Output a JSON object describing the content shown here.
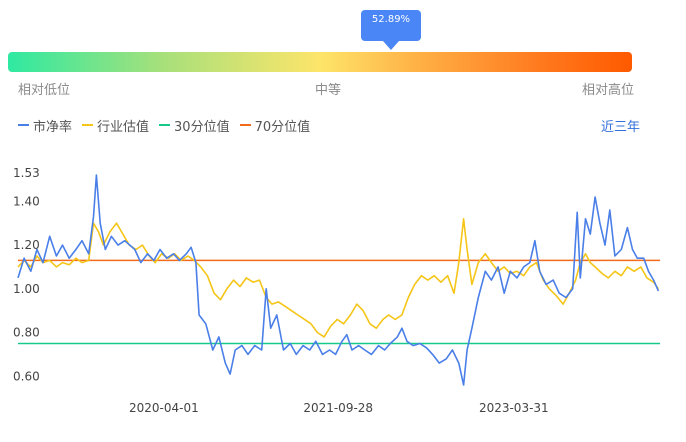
{
  "gauge": {
    "percentile_label": "52.89%",
    "percentile_value": 52.89,
    "labels": {
      "low": "相对低位",
      "mid": "中等",
      "high": "相对高位"
    }
  },
  "legend": {
    "items": [
      {
        "name": "市净率",
        "color": "#4a7fe8"
      },
      {
        "name": "行业估值",
        "color": "#f5c518"
      },
      {
        "name": "30分位值",
        "color": "#18c98a"
      },
      {
        "name": "70分位值",
        "color": "#f26b1d"
      }
    ]
  },
  "range_selector": {
    "label": "近三年"
  },
  "chart_data": {
    "type": "line",
    "ylim": [
      0.56,
      1.58
    ],
    "y_ticks": [
      1.53,
      1.4,
      1.2,
      1.0,
      0.8,
      0.6
    ],
    "y_tick_labels": [
      "1.53",
      "1.40",
      "1.20",
      "1.00",
      "0.80",
      "0.60"
    ],
    "x_range": [
      "2019-01-01",
      "2024-06-30"
    ],
    "x_ticks": [
      "2020-04-01",
      "2021-09-28",
      "2023-03-31"
    ],
    "hlines": [
      {
        "name": "30分位值",
        "value": 0.75,
        "color": "#18c98a"
      },
      {
        "name": "70分位值",
        "value": 1.13,
        "color": "#f26b1d"
      }
    ],
    "series": [
      {
        "name": "市净率",
        "color": "#4a7fe8",
        "points": [
          [
            "2019-01-01",
            1.05
          ],
          [
            "2019-01-20",
            1.14
          ],
          [
            "2019-02-10",
            1.08
          ],
          [
            "2019-03-01",
            1.18
          ],
          [
            "2019-03-20",
            1.12
          ],
          [
            "2019-04-10",
            1.24
          ],
          [
            "2019-05-01",
            1.15
          ],
          [
            "2019-05-20",
            1.2
          ],
          [
            "2019-06-10",
            1.14
          ],
          [
            "2019-07-01",
            1.18
          ],
          [
            "2019-07-20",
            1.22
          ],
          [
            "2019-08-10",
            1.16
          ],
          [
            "2019-08-25",
            1.33
          ],
          [
            "2019-09-03",
            1.52
          ],
          [
            "2019-09-15",
            1.3
          ],
          [
            "2019-10-01",
            1.18
          ],
          [
            "2019-10-20",
            1.24
          ],
          [
            "2019-11-10",
            1.2
          ],
          [
            "2019-12-01",
            1.22
          ],
          [
            "2020-01-01",
            1.18
          ],
          [
            "2020-01-20",
            1.12
          ],
          [
            "2020-02-10",
            1.16
          ],
          [
            "2020-03-01",
            1.13
          ],
          [
            "2020-03-20",
            1.18
          ],
          [
            "2020-04-10",
            1.14
          ],
          [
            "2020-05-01",
            1.16
          ],
          [
            "2020-05-20",
            1.13
          ],
          [
            "2020-06-10",
            1.16
          ],
          [
            "2020-06-25",
            1.19
          ],
          [
            "2020-07-10",
            1.12
          ],
          [
            "2020-07-20",
            0.88
          ],
          [
            "2020-08-10",
            0.84
          ],
          [
            "2020-09-01",
            0.72
          ],
          [
            "2020-09-20",
            0.78
          ],
          [
            "2020-10-10",
            0.66
          ],
          [
            "2020-10-25",
            0.61
          ],
          [
            "2020-11-10",
            0.72
          ],
          [
            "2020-12-01",
            0.74
          ],
          [
            "2020-12-20",
            0.7
          ],
          [
            "2021-01-10",
            0.74
          ],
          [
            "2021-02-01",
            0.72
          ],
          [
            "2021-02-15",
            1.0
          ],
          [
            "2021-03-01",
            0.82
          ],
          [
            "2021-03-20",
            0.88
          ],
          [
            "2021-04-10",
            0.72
          ],
          [
            "2021-05-01",
            0.75
          ],
          [
            "2021-05-20",
            0.7
          ],
          [
            "2021-06-10",
            0.74
          ],
          [
            "2021-07-01",
            0.72
          ],
          [
            "2021-07-20",
            0.76
          ],
          [
            "2021-08-10",
            0.7
          ],
          [
            "2021-09-01",
            0.72
          ],
          [
            "2021-09-20",
            0.7
          ],
          [
            "2021-10-10",
            0.76
          ],
          [
            "2021-10-25",
            0.79
          ],
          [
            "2021-11-10",
            0.72
          ],
          [
            "2021-12-01",
            0.74
          ],
          [
            "2021-12-20",
            0.72
          ],
          [
            "2022-01-10",
            0.7
          ],
          [
            "2022-02-01",
            0.74
          ],
          [
            "2022-02-20",
            0.72
          ],
          [
            "2022-03-10",
            0.75
          ],
          [
            "2022-04-01",
            0.78
          ],
          [
            "2022-04-15",
            0.82
          ],
          [
            "2022-05-01",
            0.76
          ],
          [
            "2022-05-20",
            0.74
          ],
          [
            "2022-06-10",
            0.75
          ],
          [
            "2022-07-01",
            0.73
          ],
          [
            "2022-07-20",
            0.7
          ],
          [
            "2022-08-10",
            0.66
          ],
          [
            "2022-09-01",
            0.68
          ],
          [
            "2022-09-20",
            0.72
          ],
          [
            "2022-10-10",
            0.66
          ],
          [
            "2022-10-25",
            0.56
          ],
          [
            "2022-11-05",
            0.72
          ],
          [
            "2022-11-20",
            0.82
          ],
          [
            "2022-12-10",
            0.96
          ],
          [
            "2023-01-01",
            1.08
          ],
          [
            "2023-01-20",
            1.04
          ],
          [
            "2023-02-10",
            1.1
          ],
          [
            "2023-03-01",
            0.98
          ],
          [
            "2023-03-20",
            1.08
          ],
          [
            "2023-04-10",
            1.05
          ],
          [
            "2023-05-01",
            1.1
          ],
          [
            "2023-05-20",
            1.12
          ],
          [
            "2023-06-05",
            1.22
          ],
          [
            "2023-06-20",
            1.08
          ],
          [
            "2023-07-10",
            1.02
          ],
          [
            "2023-08-01",
            1.04
          ],
          [
            "2023-08-20",
            0.98
          ],
          [
            "2023-09-10",
            0.96
          ],
          [
            "2023-10-01",
            1.0
          ],
          [
            "2023-10-15",
            1.35
          ],
          [
            "2023-10-25",
            1.05
          ],
          [
            "2023-11-10",
            1.32
          ],
          [
            "2023-11-25",
            1.25
          ],
          [
            "2023-12-10",
            1.42
          ],
          [
            "2023-12-25",
            1.3
          ],
          [
            "2024-01-10",
            1.2
          ],
          [
            "2024-01-25",
            1.36
          ],
          [
            "2024-02-10",
            1.15
          ],
          [
            "2024-03-01",
            1.18
          ],
          [
            "2024-03-20",
            1.28
          ],
          [
            "2024-04-05",
            1.18
          ],
          [
            "2024-04-20",
            1.14
          ],
          [
            "2024-05-10",
            1.14
          ],
          [
            "2024-05-25",
            1.08
          ],
          [
            "2024-06-10",
            1.04
          ],
          [
            "2024-06-25",
            0.99
          ]
        ]
      },
      {
        "name": "行业估值",
        "color": "#f5c518",
        "points": [
          [
            "2019-01-01",
            1.1
          ],
          [
            "2019-01-20",
            1.13
          ],
          [
            "2019-02-10",
            1.1
          ],
          [
            "2019-03-01",
            1.15
          ],
          [
            "2019-03-20",
            1.12
          ],
          [
            "2019-04-10",
            1.13
          ],
          [
            "2019-05-01",
            1.1
          ],
          [
            "2019-05-20",
            1.12
          ],
          [
            "2019-06-10",
            1.11
          ],
          [
            "2019-07-01",
            1.14
          ],
          [
            "2019-07-20",
            1.12
          ],
          [
            "2019-08-10",
            1.13
          ],
          [
            "2019-08-25",
            1.3
          ],
          [
            "2019-09-10",
            1.26
          ],
          [
            "2019-09-25",
            1.2
          ],
          [
            "2019-10-15",
            1.26
          ],
          [
            "2019-11-05",
            1.3
          ],
          [
            "2019-11-25",
            1.25
          ],
          [
            "2019-12-15",
            1.2
          ],
          [
            "2020-01-05",
            1.18
          ],
          [
            "2020-01-25",
            1.2
          ],
          [
            "2020-02-15",
            1.15
          ],
          [
            "2020-03-05",
            1.12
          ],
          [
            "2020-03-25",
            1.16
          ],
          [
            "2020-04-15",
            1.14
          ],
          [
            "2020-05-05",
            1.16
          ],
          [
            "2020-05-25",
            1.13
          ],
          [
            "2020-06-15",
            1.15
          ],
          [
            "2020-07-05",
            1.13
          ],
          [
            "2020-07-25",
            1.1
          ],
          [
            "2020-08-15",
            1.06
          ],
          [
            "2020-09-05",
            0.98
          ],
          [
            "2020-09-25",
            0.95
          ],
          [
            "2020-10-15",
            1.0
          ],
          [
            "2020-11-05",
            1.04
          ],
          [
            "2020-11-25",
            1.01
          ],
          [
            "2020-12-15",
            1.05
          ],
          [
            "2021-01-05",
            1.03
          ],
          [
            "2021-01-25",
            1.04
          ],
          [
            "2021-02-15",
            0.96
          ],
          [
            "2021-03-05",
            0.93
          ],
          [
            "2021-03-25",
            0.94
          ],
          [
            "2021-04-15",
            0.92
          ],
          [
            "2021-05-05",
            0.9
          ],
          [
            "2021-05-25",
            0.88
          ],
          [
            "2021-06-15",
            0.86
          ],
          [
            "2021-07-05",
            0.84
          ],
          [
            "2021-07-25",
            0.8
          ],
          [
            "2021-08-15",
            0.78
          ],
          [
            "2021-09-05",
            0.83
          ],
          [
            "2021-09-25",
            0.86
          ],
          [
            "2021-10-15",
            0.84
          ],
          [
            "2021-11-05",
            0.88
          ],
          [
            "2021-11-25",
            0.93
          ],
          [
            "2021-12-15",
            0.9
          ],
          [
            "2022-01-05",
            0.84
          ],
          [
            "2022-01-25",
            0.82
          ],
          [
            "2022-02-15",
            0.86
          ],
          [
            "2022-03-05",
            0.88
          ],
          [
            "2022-03-25",
            0.86
          ],
          [
            "2022-04-15",
            0.88
          ],
          [
            "2022-05-05",
            0.96
          ],
          [
            "2022-05-25",
            1.02
          ],
          [
            "2022-06-15",
            1.06
          ],
          [
            "2022-07-05",
            1.04
          ],
          [
            "2022-07-25",
            1.06
          ],
          [
            "2022-08-15",
            1.03
          ],
          [
            "2022-09-05",
            1.06
          ],
          [
            "2022-09-25",
            0.98
          ],
          [
            "2022-10-10",
            1.12
          ],
          [
            "2022-10-25",
            1.32
          ],
          [
            "2022-11-05",
            1.18
          ],
          [
            "2022-11-20",
            1.02
          ],
          [
            "2022-12-10",
            1.12
          ],
          [
            "2023-01-01",
            1.16
          ],
          [
            "2023-01-20",
            1.12
          ],
          [
            "2023-02-10",
            1.08
          ],
          [
            "2023-03-01",
            1.1
          ],
          [
            "2023-03-20",
            1.07
          ],
          [
            "2023-04-10",
            1.08
          ],
          [
            "2023-05-01",
            1.06
          ],
          [
            "2023-05-20",
            1.1
          ],
          [
            "2023-06-10",
            1.12
          ],
          [
            "2023-07-01",
            1.04
          ],
          [
            "2023-07-20",
            1.0
          ],
          [
            "2023-08-10",
            0.97
          ],
          [
            "2023-09-01",
            0.93
          ],
          [
            "2023-09-20",
            0.98
          ],
          [
            "2023-10-10",
            1.04
          ],
          [
            "2023-10-25",
            1.12
          ],
          [
            "2023-11-10",
            1.16
          ],
          [
            "2023-11-25",
            1.12
          ],
          [
            "2023-12-10",
            1.1
          ],
          [
            "2024-01-01",
            1.07
          ],
          [
            "2024-01-20",
            1.05
          ],
          [
            "2024-02-10",
            1.08
          ],
          [
            "2024-03-01",
            1.06
          ],
          [
            "2024-03-20",
            1.1
          ],
          [
            "2024-04-10",
            1.08
          ],
          [
            "2024-05-01",
            1.1
          ],
          [
            "2024-05-20",
            1.05
          ],
          [
            "2024-06-10",
            1.03
          ],
          [
            "2024-06-25",
            1.0
          ]
        ]
      }
    ]
  }
}
